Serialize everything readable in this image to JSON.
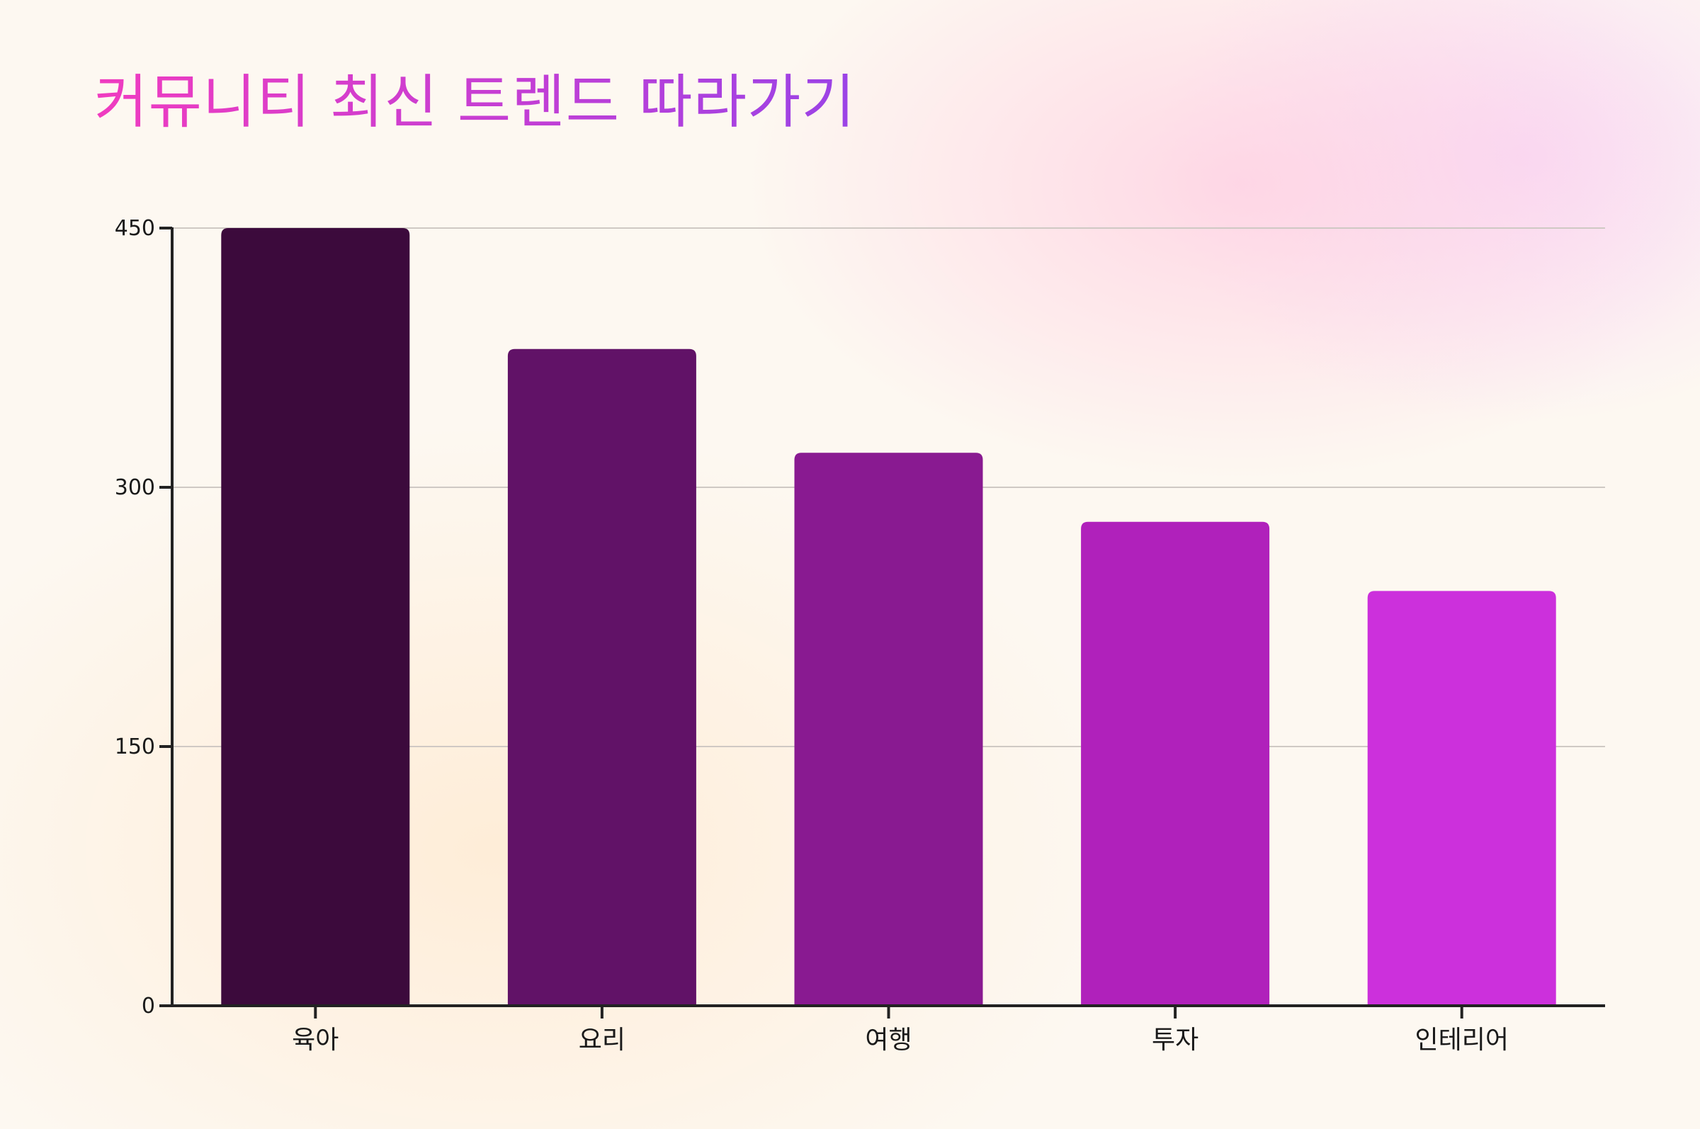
{
  "chart_data": {
    "type": "bar",
    "title": "커뮤니티 최신 트렌드 따라가기",
    "categories": [
      "육아",
      "요리",
      "여행",
      "투자",
      "인테리어"
    ],
    "values": [
      450,
      380,
      320,
      280,
      240
    ],
    "colors": [
      "#3c0a3c",
      "#611267",
      "#891a91",
      "#b021bb",
      "#cc30dc"
    ],
    "xlabel": "",
    "ylabel": "",
    "ylim": [
      0,
      450
    ],
    "yticks": [
      0,
      150,
      300,
      450
    ],
    "grid": true,
    "legend": "none"
  }
}
